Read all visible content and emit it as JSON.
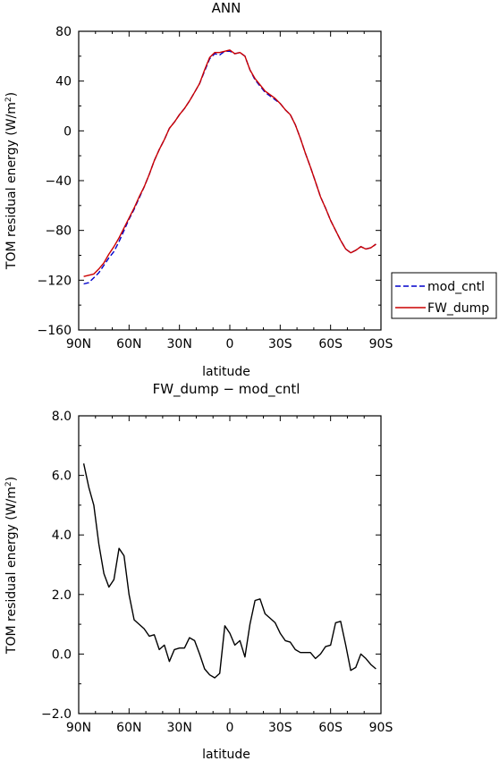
{
  "chart_data": [
    {
      "type": "line",
      "title": "ANN",
      "xlabel": "latitude",
      "ylabel_main": "TOM residual energy (W/m",
      "ylabel_sup": "2",
      "ylabel_close": ")",
      "x_tick_labels": [
        "90N",
        "60N",
        "30N",
        "0",
        "30S",
        "60S",
        "90S"
      ],
      "x_tick_values": [
        90,
        60,
        30,
        0,
        -30,
        -60,
        -90
      ],
      "xlim": [
        90,
        -90
      ],
      "y_tick_labels": [
        "80",
        "40",
        "0",
        "−40",
        "−80",
        "−120",
        "−160"
      ],
      "y_tick_values": [
        80,
        40,
        0,
        -40,
        -80,
        -120,
        -160
      ],
      "ylim": [
        -160,
        80
      ],
      "legend_position": "right",
      "series": [
        {
          "name": "mod_cntl",
          "color": "#0000cc",
          "dash": "dashed",
          "x": [
            87,
            84,
            81,
            78,
            75,
            72,
            69,
            66,
            63,
            60,
            57,
            54,
            51,
            48,
            45,
            42,
            39,
            36,
            33,
            30,
            27,
            24,
            21,
            18,
            15,
            12,
            9,
            6,
            3,
            0,
            -3,
            -6,
            -9,
            -12,
            -15,
            -18,
            -21,
            -24,
            -27,
            -30,
            -33,
            -36,
            -39,
            -42,
            -45,
            -48,
            -51,
            -54,
            -57,
            -60,
            -63,
            -66,
            -69,
            -72,
            -75,
            -78,
            -81,
            -84,
            -87
          ],
          "y": [
            -123,
            -122,
            -118,
            -114,
            -108,
            -102,
            -97,
            -89,
            -80,
            -71,
            -63,
            -54,
            -45,
            -35,
            -24,
            -15,
            -7,
            2,
            7,
            13,
            18,
            24,
            31,
            38,
            48,
            58,
            62,
            61,
            64,
            64,
            62,
            63,
            60,
            49,
            41,
            36,
            31,
            28,
            25,
            22,
            17,
            13,
            5,
            -6,
            -18,
            -29,
            -41,
            -53,
            -62,
            -72,
            -80,
            -88,
            -95,
            -98,
            -96,
            -93,
            -95,
            -94,
            -91
          ]
        },
        {
          "name": "FW_dump",
          "color": "#cc0000",
          "dash": "solid",
          "x": [
            87,
            84,
            81,
            78,
            75,
            72,
            69,
            66,
            63,
            60,
            57,
            54,
            51,
            48,
            45,
            42,
            39,
            36,
            33,
            30,
            27,
            24,
            21,
            18,
            15,
            12,
            9,
            6,
            3,
            0,
            -3,
            -6,
            -9,
            -12,
            -15,
            -18,
            -21,
            -24,
            -27,
            -30,
            -33,
            -36,
            -39,
            -42,
            -45,
            -48,
            -51,
            -54,
            -57,
            -60,
            -63,
            -66,
            -69,
            -72,
            -75,
            -78,
            -81,
            -84,
            -87
          ],
          "y": [
            -117,
            -116,
            -115,
            -111,
            -106,
            -99,
            -93,
            -86,
            -78,
            -70,
            -62,
            -53,
            -45,
            -35,
            -24,
            -15,
            -7,
            2,
            7,
            13,
            18,
            24,
            31,
            38,
            49,
            59,
            63,
            63,
            64,
            65,
            62,
            63,
            60,
            49,
            42,
            37,
            32,
            29,
            26,
            22,
            17,
            13,
            5,
            -6,
            -18,
            -29,
            -41,
            -53,
            -62,
            -72,
            -80,
            -88,
            -95,
            -98,
            -96,
            -93,
            -95,
            -94,
            -91
          ]
        }
      ]
    },
    {
      "type": "line",
      "title": "FW_dump − mod_cntl",
      "xlabel": "latitude",
      "ylabel_main": "TOM residual energy (W/m",
      "ylabel_sup": "2",
      "ylabel_close": ")",
      "x_tick_labels": [
        "90N",
        "60N",
        "30N",
        "0",
        "30S",
        "60S",
        "90S"
      ],
      "x_tick_values": [
        90,
        60,
        30,
        0,
        -30,
        -60,
        -90
      ],
      "xlim": [
        90,
        -90
      ],
      "y_tick_labels": [
        "8.0",
        "6.0",
        "4.0",
        "2.0",
        "0.0",
        "−2.0"
      ],
      "y_tick_values": [
        8,
        6,
        4,
        2,
        0,
        -2
      ],
      "ylim": [
        -2,
        8
      ],
      "series": [
        {
          "color": "#000000",
          "dash": "solid",
          "x": [
            87,
            84,
            81,
            78,
            75,
            72,
            69,
            66,
            63,
            60,
            57,
            54,
            51,
            48,
            45,
            42,
            39,
            36,
            33,
            30,
            27,
            24,
            21,
            18,
            15,
            12,
            9,
            6,
            3,
            0,
            -3,
            -6,
            -9,
            -12,
            -15,
            -18,
            -21,
            -24,
            -27,
            -30,
            -33,
            -36,
            -39,
            -42,
            -45,
            -48,
            -51,
            -54,
            -57,
            -60,
            -63,
            -66,
            -69,
            -72,
            -75,
            -78,
            -81,
            -84,
            -87
          ],
          "y": [
            6.4,
            5.6,
            5.0,
            3.7,
            2.7,
            2.25,
            2.5,
            3.55,
            3.3,
            2.0,
            1.15,
            1.0,
            0.85,
            0.6,
            0.65,
            0.15,
            0.3,
            -0.25,
            0.15,
            0.2,
            0.2,
            0.55,
            0.45,
            0.0,
            -0.5,
            -0.7,
            -0.8,
            -0.65,
            0.95,
            0.7,
            0.3,
            0.45,
            -0.1,
            1.0,
            1.8,
            1.85,
            1.35,
            1.2,
            1.05,
            0.7,
            0.45,
            0.4,
            0.15,
            0.05,
            0.05,
            0.05,
            -0.15,
            0.0,
            0.25,
            0.3,
            1.05,
            1.1,
            0.3,
            -0.55,
            -0.45,
            0.0,
            -0.15,
            -0.35,
            -0.5
          ]
        }
      ]
    }
  ]
}
